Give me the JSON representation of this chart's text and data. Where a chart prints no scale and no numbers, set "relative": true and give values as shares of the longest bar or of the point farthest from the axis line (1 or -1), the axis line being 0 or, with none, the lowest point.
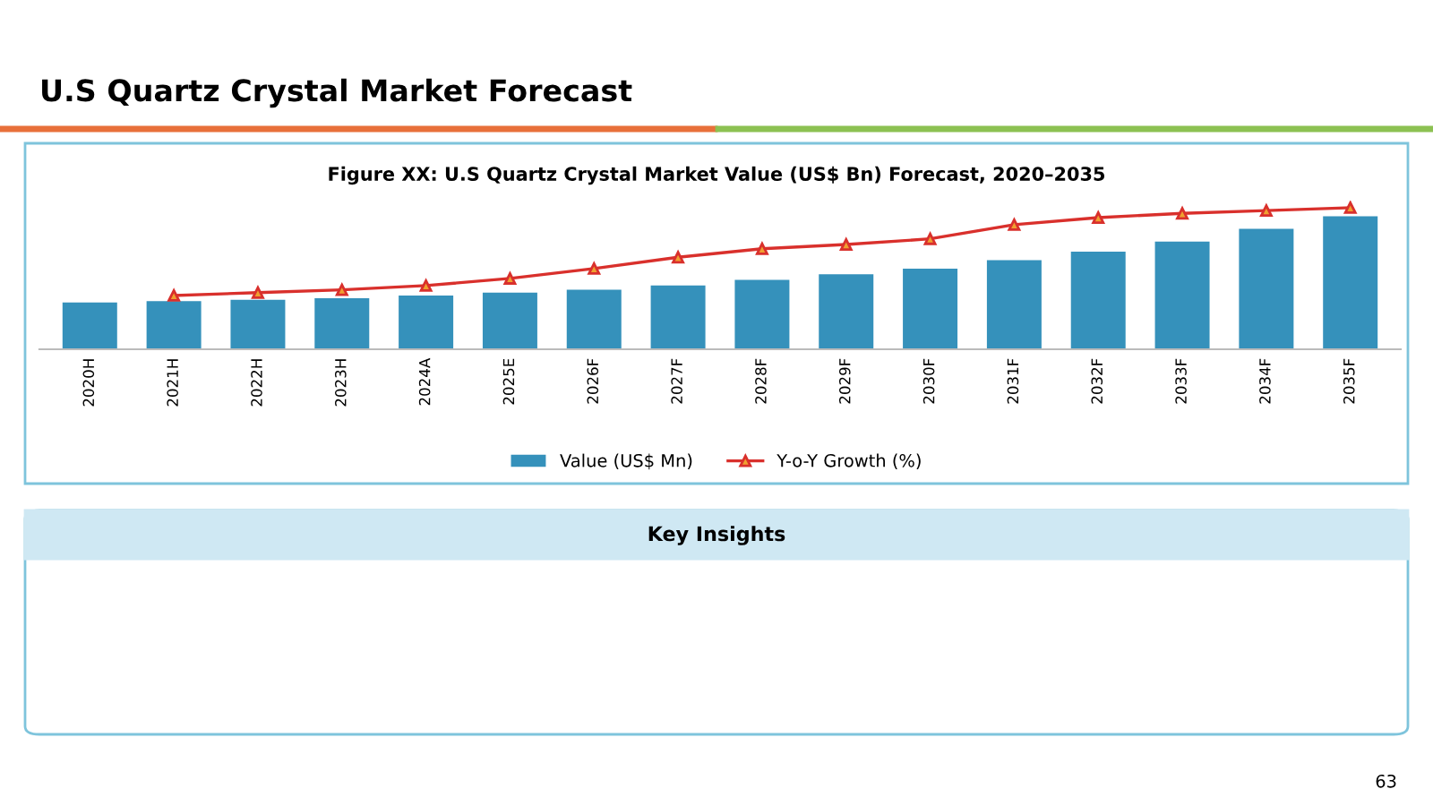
{
  "chart_data": {
    "type": "bar",
    "title": "U.S Quartz Crystal Market Forecast",
    "subtitle": "Figure XX: U.S Quartz Crystal Market Value (US$ Bn) Forecast, 2020–2035",
    "categories": [
      "2020H",
      "2021H",
      "2022H",
      "2023H",
      "2024A",
      "2025E",
      "2026F",
      "2027F",
      "2028F",
      "2029F",
      "2030F",
      "2031F",
      "2032F",
      "2033F",
      "2034F",
      "2035F"
    ],
    "relative": true,
    "legend": "bottom",
    "grid": false,
    "series": [
      {
        "name": "Value (US$ Mn)",
        "color": "#3591bb",
        "values": [
          0.33,
          0.34,
          0.35,
          0.36,
          0.38,
          0.4,
          0.42,
          0.45,
          0.49,
          0.53,
          0.57,
          0.63,
          0.69,
          0.76,
          0.85,
          0.94
        ]
      },
      {
        "name": "Y-o-Y Growth (%)",
        "type": "line",
        "color": "#d9302c",
        "marker": "triangle",
        "values": [
          null,
          0.38,
          0.4,
          0.42,
          0.45,
          0.5,
          0.57,
          0.65,
          0.71,
          0.74,
          0.78,
          0.88,
          0.93,
          0.96,
          0.98,
          1.0
        ]
      }
    ],
    "annotations": [
      "Key Insights",
      "63"
    ]
  }
}
